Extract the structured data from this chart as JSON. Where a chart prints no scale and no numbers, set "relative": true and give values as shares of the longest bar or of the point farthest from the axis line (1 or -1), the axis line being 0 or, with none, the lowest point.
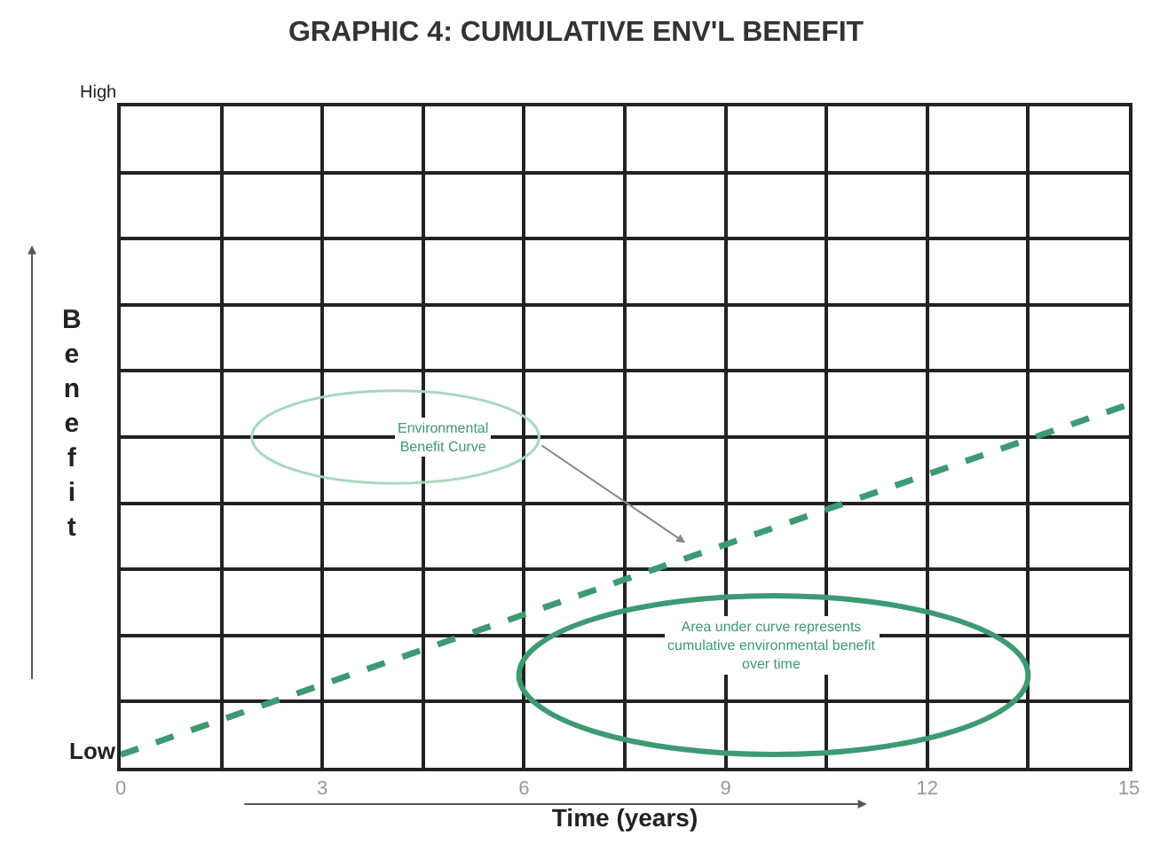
{
  "chart_data": {
    "type": "line",
    "title": "GRAPHIC 4: CUMULATIVE ENV'L BENEFIT",
    "xlabel": "Time (years)",
    "ylabel": "Benefit",
    "x": [
      0,
      15
    ],
    "series": [
      {
        "color": "#3d9a72",
        "values": [
          0.036,
          1
        ]
      }
    ],
    "relative": true,
    "line_style": "dashed",
    "marker": "none",
    "xlim": [
      0,
      15
    ],
    "xticks": [
      0,
      {
        "value": 1.5,
        "label": null
      },
      3,
      {
        "value": 4.5,
        "label": null
      },
      6,
      {
        "value": 7.5,
        "label": null
      },
      9,
      {
        "value": 10.5,
        "label": null
      },
      12,
      {
        "value": 13.5,
        "label": null
      },
      15
    ],
    "grid": true,
    "annotations": [
      "Environmental Benefit Curve",
      "Area under curve represents cumulative environmental benefit over time",
      "High",
      "Low"
    ]
  }
}
